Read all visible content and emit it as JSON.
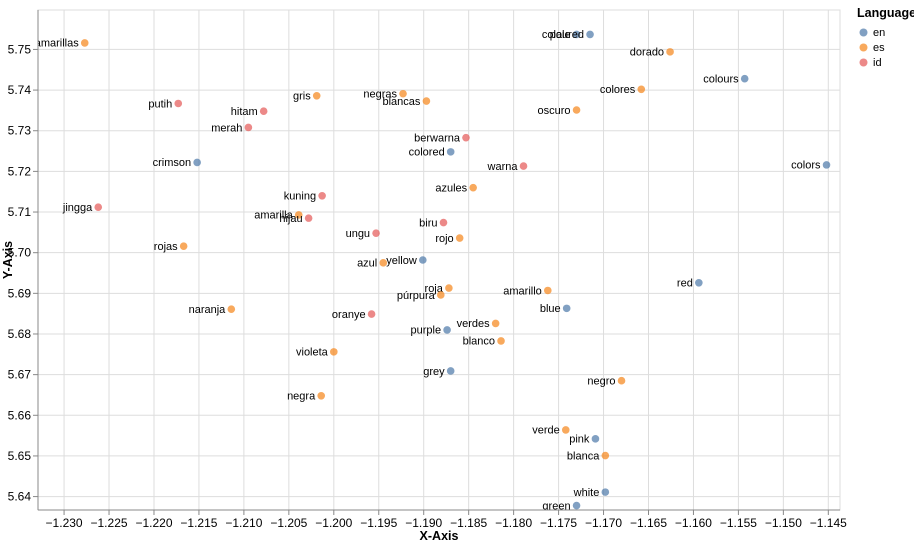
{
  "chart_data": {
    "type": "scatter",
    "title": "",
    "xlabel": "X-Axis",
    "ylabel": "Y-Axis",
    "x_domain": [
      -1.2329,
      -1.1437
    ],
    "y_domain": [
      5.6367,
      5.7597
    ],
    "x_ticks": [
      -1.23,
      -1.225,
      -1.22,
      -1.215,
      -1.21,
      -1.205,
      -1.2,
      -1.195,
      -1.19,
      -1.185,
      -1.18,
      -1.175,
      -1.17,
      -1.165,
      -1.16,
      -1.155,
      -1.15,
      -1.145
    ],
    "y_ticks": [
      5.64,
      5.65,
      5.66,
      5.67,
      5.68,
      5.69,
      5.7,
      5.71,
      5.72,
      5.73,
      5.74,
      5.75
    ],
    "grid": true,
    "point_opacity": 0.7,
    "colors": {
      "grid": "#dddddd",
      "axis": "#888888",
      "en": "#4c78a8",
      "es": "#f58518",
      "id": "#e45756"
    },
    "legend": {
      "title": "Language",
      "position": "top-right",
      "entries": [
        {
          "label": "en",
          "color": "#4c78a8"
        },
        {
          "label": "es",
          "color": "#f58518"
        },
        {
          "label": "id",
          "color": "#e45756"
        }
      ]
    },
    "points": [
      {
        "label": "amarillas",
        "lang": "es",
        "x": -1.2277,
        "y": 5.7516
      },
      {
        "label": "pale",
        "lang": "en",
        "x": -1.173,
        "y": 5.7537
      },
      {
        "label": "coloured",
        "lang": "en",
        "x": -1.1715,
        "y": 5.7537
      },
      {
        "label": "dorado",
        "lang": "es",
        "x": -1.1626,
        "y": 5.7494
      },
      {
        "label": "colours",
        "lang": "en",
        "x": -1.1543,
        "y": 5.7428
      },
      {
        "label": "colores",
        "lang": "es",
        "x": -1.1658,
        "y": 5.7402
      },
      {
        "label": "negras",
        "lang": "es",
        "x": -1.1923,
        "y": 5.7391
      },
      {
        "label": "gris",
        "lang": "es",
        "x": -1.2019,
        "y": 5.7386
      },
      {
        "label": "blancas",
        "lang": "es",
        "x": -1.1897,
        "y": 5.7373
      },
      {
        "label": "putih",
        "lang": "id",
        "x": -1.2173,
        "y": 5.7367
      },
      {
        "label": "oscuro",
        "lang": "es",
        "x": -1.173,
        "y": 5.7351
      },
      {
        "label": "hitam",
        "lang": "id",
        "x": -1.2078,
        "y": 5.7348
      },
      {
        "label": "merah",
        "lang": "id",
        "x": -1.2095,
        "y": 5.7308
      },
      {
        "label": "berwarna",
        "lang": "id",
        "x": -1.1853,
        "y": 5.7283
      },
      {
        "label": "colored",
        "lang": "en",
        "x": -1.187,
        "y": 5.7248
      },
      {
        "label": "crimson",
        "lang": "en",
        "x": -1.2152,
        "y": 5.7222
      },
      {
        "label": "colors",
        "lang": "en",
        "x": -1.1452,
        "y": 5.7216
      },
      {
        "label": "warna",
        "lang": "id",
        "x": -1.1789,
        "y": 5.7213
      },
      {
        "label": "azules",
        "lang": "es",
        "x": -1.1845,
        "y": 5.716
      },
      {
        "label": "kuning",
        "lang": "id",
        "x": -1.2013,
        "y": 5.714
      },
      {
        "label": "jingga",
        "lang": "id",
        "x": -1.2262,
        "y": 5.7112
      },
      {
        "label": "amarilla",
        "lang": "es",
        "x": -1.2039,
        "y": 5.7093
      },
      {
        "label": "hijau",
        "lang": "id",
        "x": -1.2028,
        "y": 5.7085
      },
      {
        "label": "biru",
        "lang": "id",
        "x": -1.1878,
        "y": 5.7074
      },
      {
        "label": "ungu",
        "lang": "id",
        "x": -1.1953,
        "y": 5.7048
      },
      {
        "label": "rojo",
        "lang": "es",
        "x": -1.186,
        "y": 5.7036
      },
      {
        "label": "rojas",
        "lang": "es",
        "x": -1.2167,
        "y": 5.7016
      },
      {
        "label": "yellow",
        "lang": "en",
        "x": -1.1901,
        "y": 5.6982
      },
      {
        "label": "azul",
        "lang": "es",
        "x": -1.1945,
        "y": 5.6975
      },
      {
        "label": "red",
        "lang": "en",
        "x": -1.1594,
        "y": 5.6926
      },
      {
        "label": "roja",
        "lang": "es",
        "x": -1.1872,
        "y": 5.6913
      },
      {
        "label": "amarillo",
        "lang": "es",
        "x": -1.1762,
        "y": 5.6907
      },
      {
        "label": "púrpura",
        "lang": "es",
        "x": -1.1881,
        "y": 5.6896
      },
      {
        "label": "blue",
        "lang": "en",
        "x": -1.1741,
        "y": 5.6863
      },
      {
        "label": "naranja",
        "lang": "es",
        "x": -1.2114,
        "y": 5.6861
      },
      {
        "label": "oranye",
        "lang": "id",
        "x": -1.1958,
        "y": 5.6849
      },
      {
        "label": "verdes",
        "lang": "es",
        "x": -1.182,
        "y": 5.6826
      },
      {
        "label": "purple",
        "lang": "en",
        "x": -1.1874,
        "y": 5.681
      },
      {
        "label": "blanco",
        "lang": "es",
        "x": -1.1814,
        "y": 5.6783
      },
      {
        "label": "violeta",
        "lang": "es",
        "x": -1.2,
        "y": 5.6756
      },
      {
        "label": "grey",
        "lang": "en",
        "x": -1.187,
        "y": 5.6709
      },
      {
        "label": "negro",
        "lang": "es",
        "x": -1.168,
        "y": 5.6685
      },
      {
        "label": "negra",
        "lang": "es",
        "x": -1.2014,
        "y": 5.6648
      },
      {
        "label": "verde",
        "lang": "es",
        "x": -1.1742,
        "y": 5.6564
      },
      {
        "label": "pink",
        "lang": "en",
        "x": -1.1709,
        "y": 5.6542
      },
      {
        "label": "blanca",
        "lang": "es",
        "x": -1.1698,
        "y": 5.6501
      },
      {
        "label": "white",
        "lang": "en",
        "x": -1.1698,
        "y": 5.6411
      },
      {
        "label": "green",
        "lang": "en",
        "x": -1.173,
        "y": 5.6378
      }
    ]
  }
}
